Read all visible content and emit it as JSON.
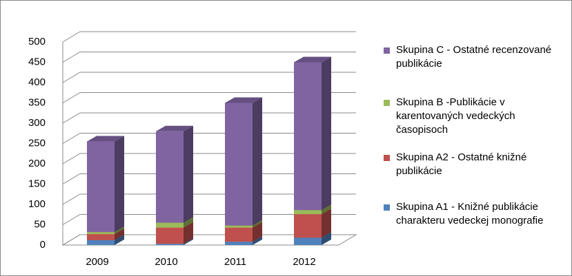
{
  "chart_data": {
    "type": "bar3d_stacked",
    "categories": [
      "2009",
      "2010",
      "2011",
      "2012"
    ],
    "series": [
      {
        "name": "Skupina A1 - Knižné publikácie charakteru vedeckej monografie",
        "color": "#4f81bd",
        "values": [
          12,
          3,
          8,
          18
        ]
      },
      {
        "name": "Skupina A2 - Ostatné knižné publikácie",
        "color": "#c0504d",
        "values": [
          15,
          40,
          35,
          58
        ]
      },
      {
        "name": "Skupina B -Publikácie v karentovaných vedeckých časopisoch",
        "color": "#9bbb59",
        "values": [
          5,
          12,
          5,
          10
        ]
      },
      {
        "name": "Skupina C - Ostatné recenzované publikácie",
        "color": "#8064a2",
        "values": [
          223,
          225,
          302,
          364
        ]
      }
    ],
    "ylim": [
      0,
      500
    ],
    "yticks": [
      0,
      50,
      100,
      150,
      200,
      250,
      300,
      350,
      400,
      450,
      500
    ],
    "grid": true,
    "legend": "right"
  }
}
